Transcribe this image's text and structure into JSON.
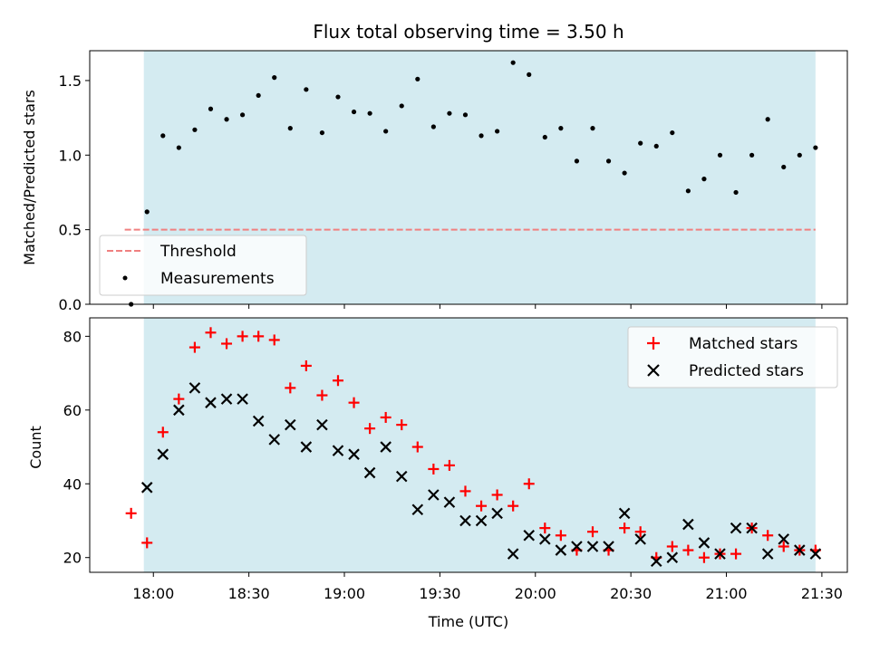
{
  "chart_data": [
    {
      "type": "scatter",
      "title": "Flux total observing time = 3.50 h",
      "xlabel": "",
      "ylabel": "Matched/Predicted stars",
      "ylim": [
        0,
        1.7
      ],
      "yticks": [
        "0.0",
        "0.5",
        "1.0",
        "1.5"
      ],
      "ytick_values": [
        0,
        0.5,
        1.0,
        1.5
      ],
      "xlim": [
        "17:40",
        "21:38"
      ],
      "observing_window": [
        "17:57",
        "21:28"
      ],
      "legend": {
        "placement": "lower-left",
        "entries": [
          "Threshold",
          "Measurements"
        ]
      },
      "colors": {
        "window": "#d4ebf1",
        "threshold": "#f08080",
        "measurements": "#000000"
      },
      "threshold": {
        "name": "Threshold",
        "value": 0.5,
        "x_range": [
          "17:51",
          "21:28"
        ]
      },
      "series": [
        {
          "name": "Measurements",
          "x": [
            "17:53",
            "17:58",
            "18:03",
            "18:08",
            "18:13",
            "18:18",
            "18:23",
            "18:28",
            "18:33",
            "18:38",
            "18:43",
            "18:48",
            "18:53",
            "18:58",
            "19:03",
            "19:08",
            "19:13",
            "19:18",
            "19:23",
            "19:28",
            "19:33",
            "19:38",
            "19:43",
            "19:48",
            "19:53",
            "19:58",
            "20:03",
            "20:08",
            "20:13",
            "20:18",
            "20:23",
            "20:28",
            "20:33",
            "20:38",
            "20:43",
            "20:48",
            "20:53",
            "20:58",
            "21:03",
            "21:08",
            "21:13",
            "21:18",
            "21:23",
            "21:28"
          ],
          "values": [
            0.0,
            0.62,
            1.13,
            1.05,
            1.17,
            1.31,
            1.24,
            1.27,
            1.4,
            1.52,
            1.18,
            1.44,
            1.15,
            1.39,
            1.29,
            1.28,
            1.16,
            1.33,
            1.51,
            1.19,
            1.28,
            1.27,
            1.13,
            1.16,
            1.62,
            1.54,
            1.12,
            1.18,
            0.96,
            1.18,
            0.96,
            0.88,
            1.08,
            1.06,
            1.15,
            0.76,
            0.84,
            1.0,
            0.75,
            1.0,
            1.24,
            0.92,
            1.0,
            1.05
          ]
        }
      ]
    },
    {
      "type": "scatter",
      "title": "",
      "xlabel": "Time (UTC)",
      "ylabel": "Count",
      "ylim": [
        16,
        85
      ],
      "yticks": [
        "20",
        "40",
        "60",
        "80"
      ],
      "ytick_values": [
        20,
        40,
        60,
        80
      ],
      "xlim": [
        "17:40",
        "21:38"
      ],
      "xticks": [
        "18:00",
        "18:30",
        "19:00",
        "19:30",
        "20:00",
        "20:30",
        "21:00",
        "21:30"
      ],
      "observing_window": [
        "17:57",
        "21:28"
      ],
      "legend": {
        "placement": "top-right",
        "entries": [
          "Matched stars",
          "Predicted stars"
        ]
      },
      "colors": {
        "window": "#d4ebf1",
        "matched": "#ff0000",
        "predicted": "#000000"
      },
      "series": [
        {
          "name": "Matched stars",
          "marker": "plus",
          "x": [
            "17:53",
            "17:58",
            "18:03",
            "18:08",
            "18:13",
            "18:18",
            "18:23",
            "18:28",
            "18:33",
            "18:38",
            "18:43",
            "18:48",
            "18:53",
            "18:58",
            "19:03",
            "19:08",
            "19:13",
            "19:18",
            "19:23",
            "19:28",
            "19:33",
            "19:38",
            "19:43",
            "19:48",
            "19:53",
            "19:58",
            "20:03",
            "20:08",
            "20:13",
            "20:18",
            "20:23",
            "20:28",
            "20:33",
            "20:38",
            "20:43",
            "20:48",
            "20:53",
            "20:58",
            "21:03",
            "21:08",
            "21:13",
            "21:18",
            "21:23",
            "21:28"
          ],
          "values": [
            32,
            24,
            54,
            63,
            77,
            81,
            78,
            80,
            80,
            79,
            66,
            72,
            64,
            68,
            62,
            55,
            58,
            56,
            50,
            44,
            45,
            38,
            34,
            37,
            34,
            40,
            28,
            26,
            22,
            27,
            22,
            28,
            27,
            20,
            23,
            22,
            20,
            21,
            21,
            28,
            26,
            23,
            22,
            22
          ]
        },
        {
          "name": "Predicted stars",
          "marker": "x",
          "x": [
            "17:58",
            "18:03",
            "18:08",
            "18:13",
            "18:18",
            "18:23",
            "18:28",
            "18:33",
            "18:38",
            "18:43",
            "18:48",
            "18:53",
            "18:58",
            "19:03",
            "19:08",
            "19:13",
            "19:18",
            "19:23",
            "19:28",
            "19:33",
            "19:38",
            "19:43",
            "19:48",
            "19:53",
            "19:58",
            "20:03",
            "20:08",
            "20:13",
            "20:18",
            "20:23",
            "20:28",
            "20:33",
            "20:38",
            "20:43",
            "20:48",
            "20:53",
            "20:58",
            "21:03",
            "21:08",
            "21:13",
            "21:18",
            "21:23",
            "21:28"
          ],
          "values": [
            39,
            48,
            60,
            66,
            62,
            63,
            63,
            57,
            52,
            56,
            50,
            56,
            49,
            48,
            43,
            50,
            42,
            33,
            37,
            35,
            30,
            30,
            32,
            21,
            26,
            25,
            22,
            23,
            23,
            23,
            32,
            25,
            19,
            20,
            29,
            24,
            21,
            28,
            28,
            21,
            25,
            22,
            21
          ]
        }
      ]
    }
  ]
}
